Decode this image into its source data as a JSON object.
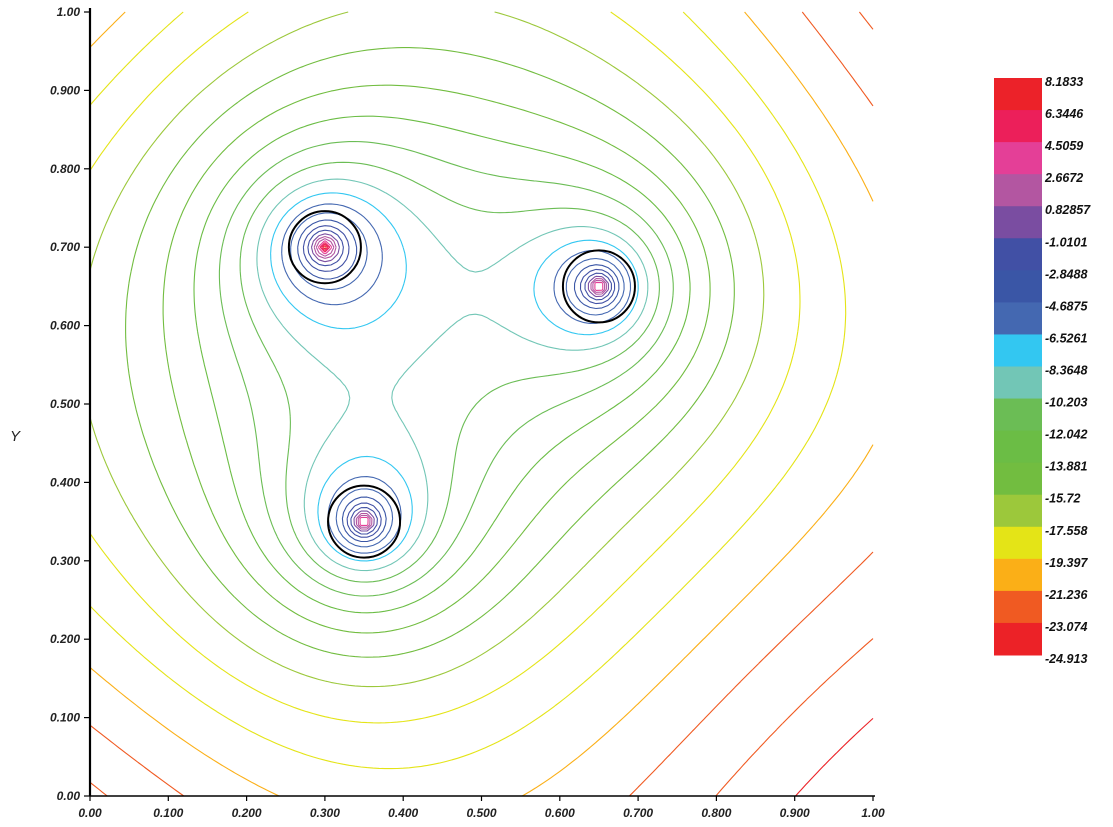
{
  "chart_data": {
    "type": "contour",
    "title": "",
    "xlabel": "",
    "ylabel": "Y",
    "xlim": [
      0.0,
      1.0
    ],
    "ylim": [
      0.0,
      1.0
    ],
    "x_ticks": [
      "0.00",
      "0.100",
      "0.200",
      "0.300",
      "0.400",
      "0.500",
      "0.600",
      "0.700",
      "0.800",
      "0.900",
      "1.00"
    ],
    "y_ticks": [
      "0.00",
      "0.100",
      "0.200",
      "0.300",
      "0.400",
      "0.500",
      "0.600",
      "0.700",
      "0.800",
      "0.900",
      "1.00"
    ],
    "sources": [
      {
        "x": 0.3,
        "y": 0.7
      },
      {
        "x": 0.65,
        "y": 0.65
      },
      {
        "x": 0.35,
        "y": 0.35
      }
    ],
    "grid": false,
    "legend": "right",
    "colorbar": {
      "levels": [
        "8.1833",
        "6.3446",
        "4.5059",
        "2.6672",
        "0.82857",
        "-1.0101",
        "-2.8488",
        "-4.6875",
        "-6.5261",
        "-8.3648",
        "-10.203",
        "-12.042",
        "-13.881",
        "-15.72",
        "-17.558",
        "-19.397",
        "-21.236",
        "-23.074",
        "-24.913"
      ],
      "colors": [
        "#ec2229",
        "#ec1f5a",
        "#e43f97",
        "#b356a1",
        "#7a4da1",
        "#4150a5",
        "#3a56a6",
        "#4468b1",
        "#33c7f1",
        "#72c6b6",
        "#6bbd55",
        "#6bbd45",
        "#72bd40",
        "#9cc83b",
        "#e4e417",
        "#fbaf17",
        "#f05a22",
        "#ec2227"
      ]
    }
  }
}
